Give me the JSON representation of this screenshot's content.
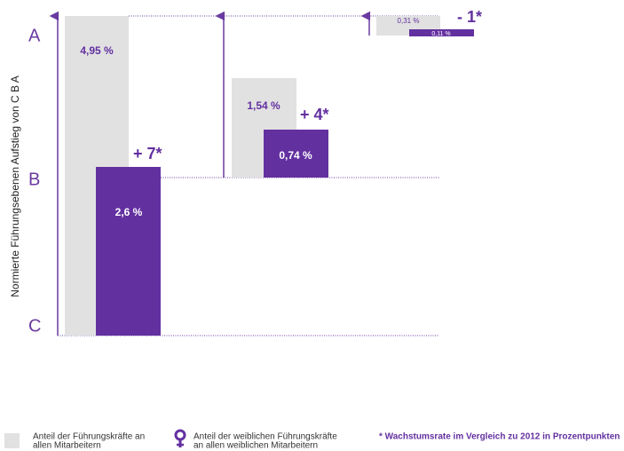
{
  "axis": {
    "title": "Normierte Führungsebenen  Aufstieg von C B A",
    "levels": [
      "A",
      "B",
      "C"
    ]
  },
  "groups": [
    {
      "total": "4,95 %",
      "women": "2,6 %",
      "growth": "+ 7*"
    },
    {
      "total": "1,54 %",
      "women": "0,74 %",
      "growth": "+ 4*"
    },
    {
      "total": "0,31 %",
      "women": "0,11 %",
      "growth": "- 1*"
    }
  ],
  "legend": {
    "total": [
      "Anteil der Führungskräfte an",
      "allen Mitarbeitern"
    ],
    "women": [
      "Anteil der weiblichen Führungskräfte",
      "an allen weiblichen Mitarbeitern"
    ],
    "note": "* Wachstumsrate im Vergleich zu 2012 in Prozentpunkten"
  }
}
